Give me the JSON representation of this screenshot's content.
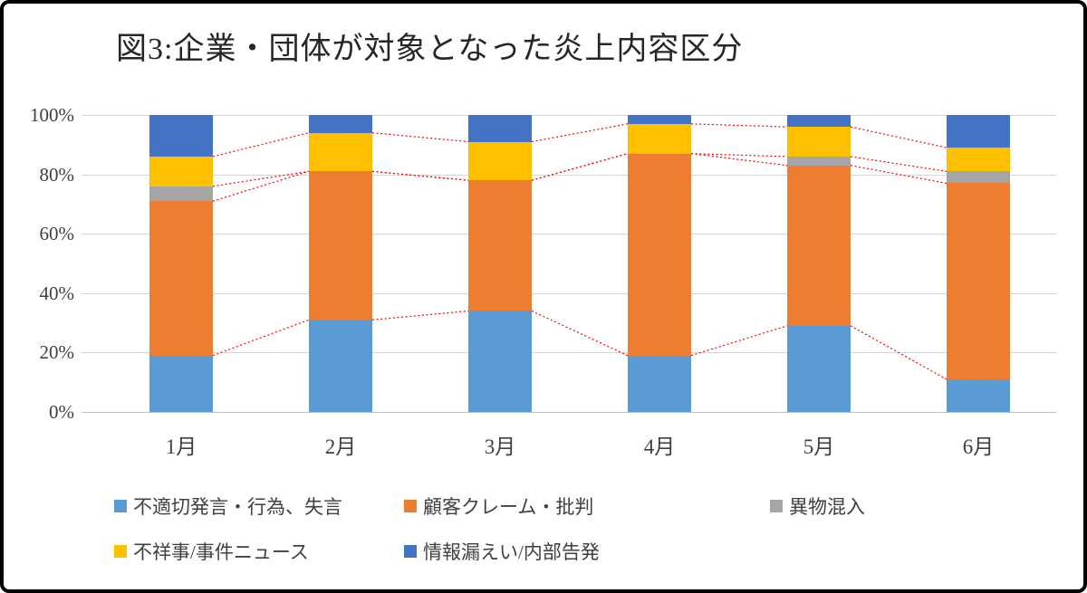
{
  "chart_data": {
    "type": "bar",
    "stacked": true,
    "percent_stacked": true,
    "title": "図3:企業・団体が対象となった炎上内容区分",
    "categories": [
      "1月",
      "2月",
      "3月",
      "4月",
      "5月",
      "6月"
    ],
    "series": [
      {
        "name": "不適切発言・行為、失言",
        "color": "#5B9BD5",
        "values": [
          19,
          31,
          34,
          19,
          29,
          11
        ]
      },
      {
        "name": "顧客クレーム・批判",
        "color": "#ED7D31",
        "values": [
          52,
          50,
          44,
          68,
          54,
          66
        ]
      },
      {
        "name": "異物混入",
        "color": "#A5A5A5",
        "values": [
          5,
          0,
          0,
          0,
          3,
          4
        ]
      },
      {
        "name": "不祥事/事件ニュース",
        "color": "#FFC000",
        "values": [
          10,
          13,
          13,
          10,
          10,
          8
        ]
      },
      {
        "name": "情報漏えい/内部告発",
        "color": "#4472C4",
        "values": [
          14,
          6,
          9,
          3,
          4,
          11
        ]
      }
    ],
    "y_ticks": [
      "0%",
      "20%",
      "40%",
      "60%",
      "80%",
      "100%"
    ],
    "ylim": [
      0,
      100
    ],
    "grid": true,
    "legend_position": "bottom",
    "series_line_color": "#FF0000",
    "gridline_color": "#D6D6D6"
  }
}
